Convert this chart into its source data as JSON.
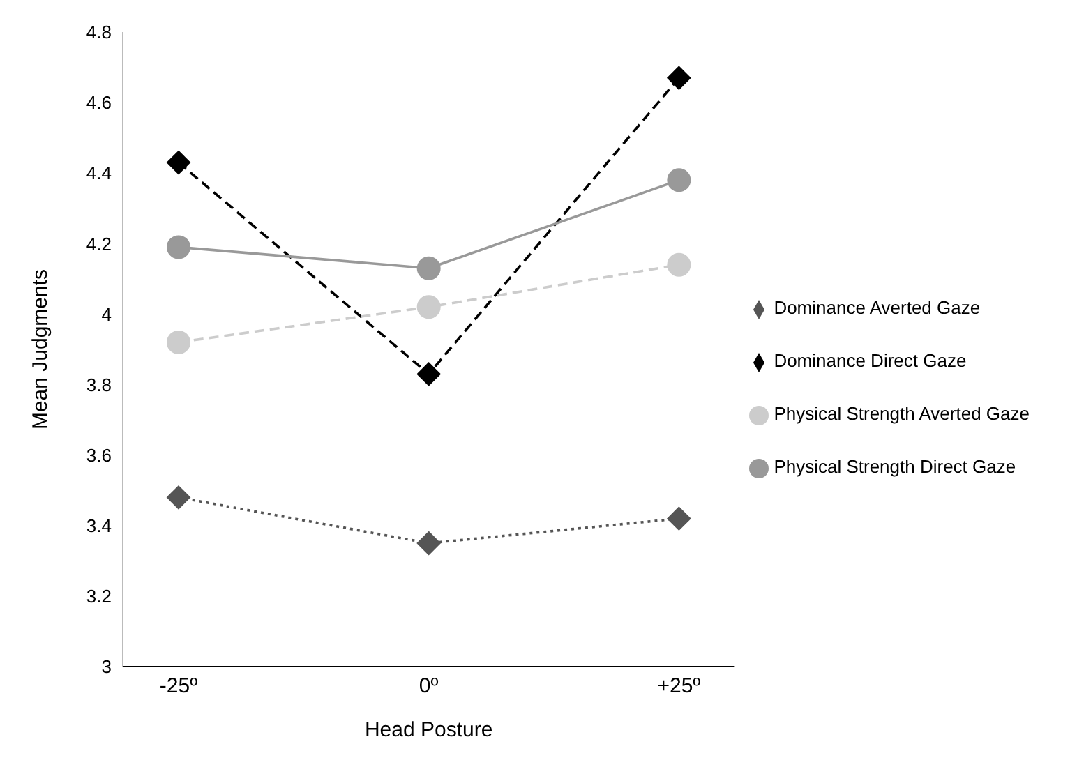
{
  "chart_data": {
    "type": "line",
    "xlabel": "Head Posture",
    "ylabel": "Mean Judgments",
    "categories": [
      "-25º",
      "0º",
      "+25º"
    ],
    "series": [
      {
        "name": "Dominance Direct Gaze",
        "color": "#000000",
        "values": [
          4.43,
          3.83,
          4.67
        ],
        "marker": "diamond",
        "line_style": "dashed"
      },
      {
        "name": "Physical Strength Direct Gaze",
        "color": "#999999",
        "values": [
          4.19,
          4.13,
          4.38
        ],
        "marker": "circle",
        "line_style": "solid"
      },
      {
        "name": "Dominance Averted Gaze",
        "color": "#555555",
        "values": [
          3.48,
          3.35,
          3.42
        ],
        "marker": "diamond",
        "line_style": "dotted"
      },
      {
        "name": "Physical Strength Averted Gaze",
        "color": "#cccccc",
        "values": [
          3.92,
          4.02,
          4.14
        ],
        "marker": "circle",
        "line_style": "dashed"
      }
    ],
    "ylim": [
      3,
      4.8
    ],
    "yticks": [
      3,
      3.2,
      3.4,
      3.6,
      3.8,
      4,
      4.2,
      4.4,
      4.6,
      4.8
    ],
    "grid": false,
    "legend": "right"
  }
}
